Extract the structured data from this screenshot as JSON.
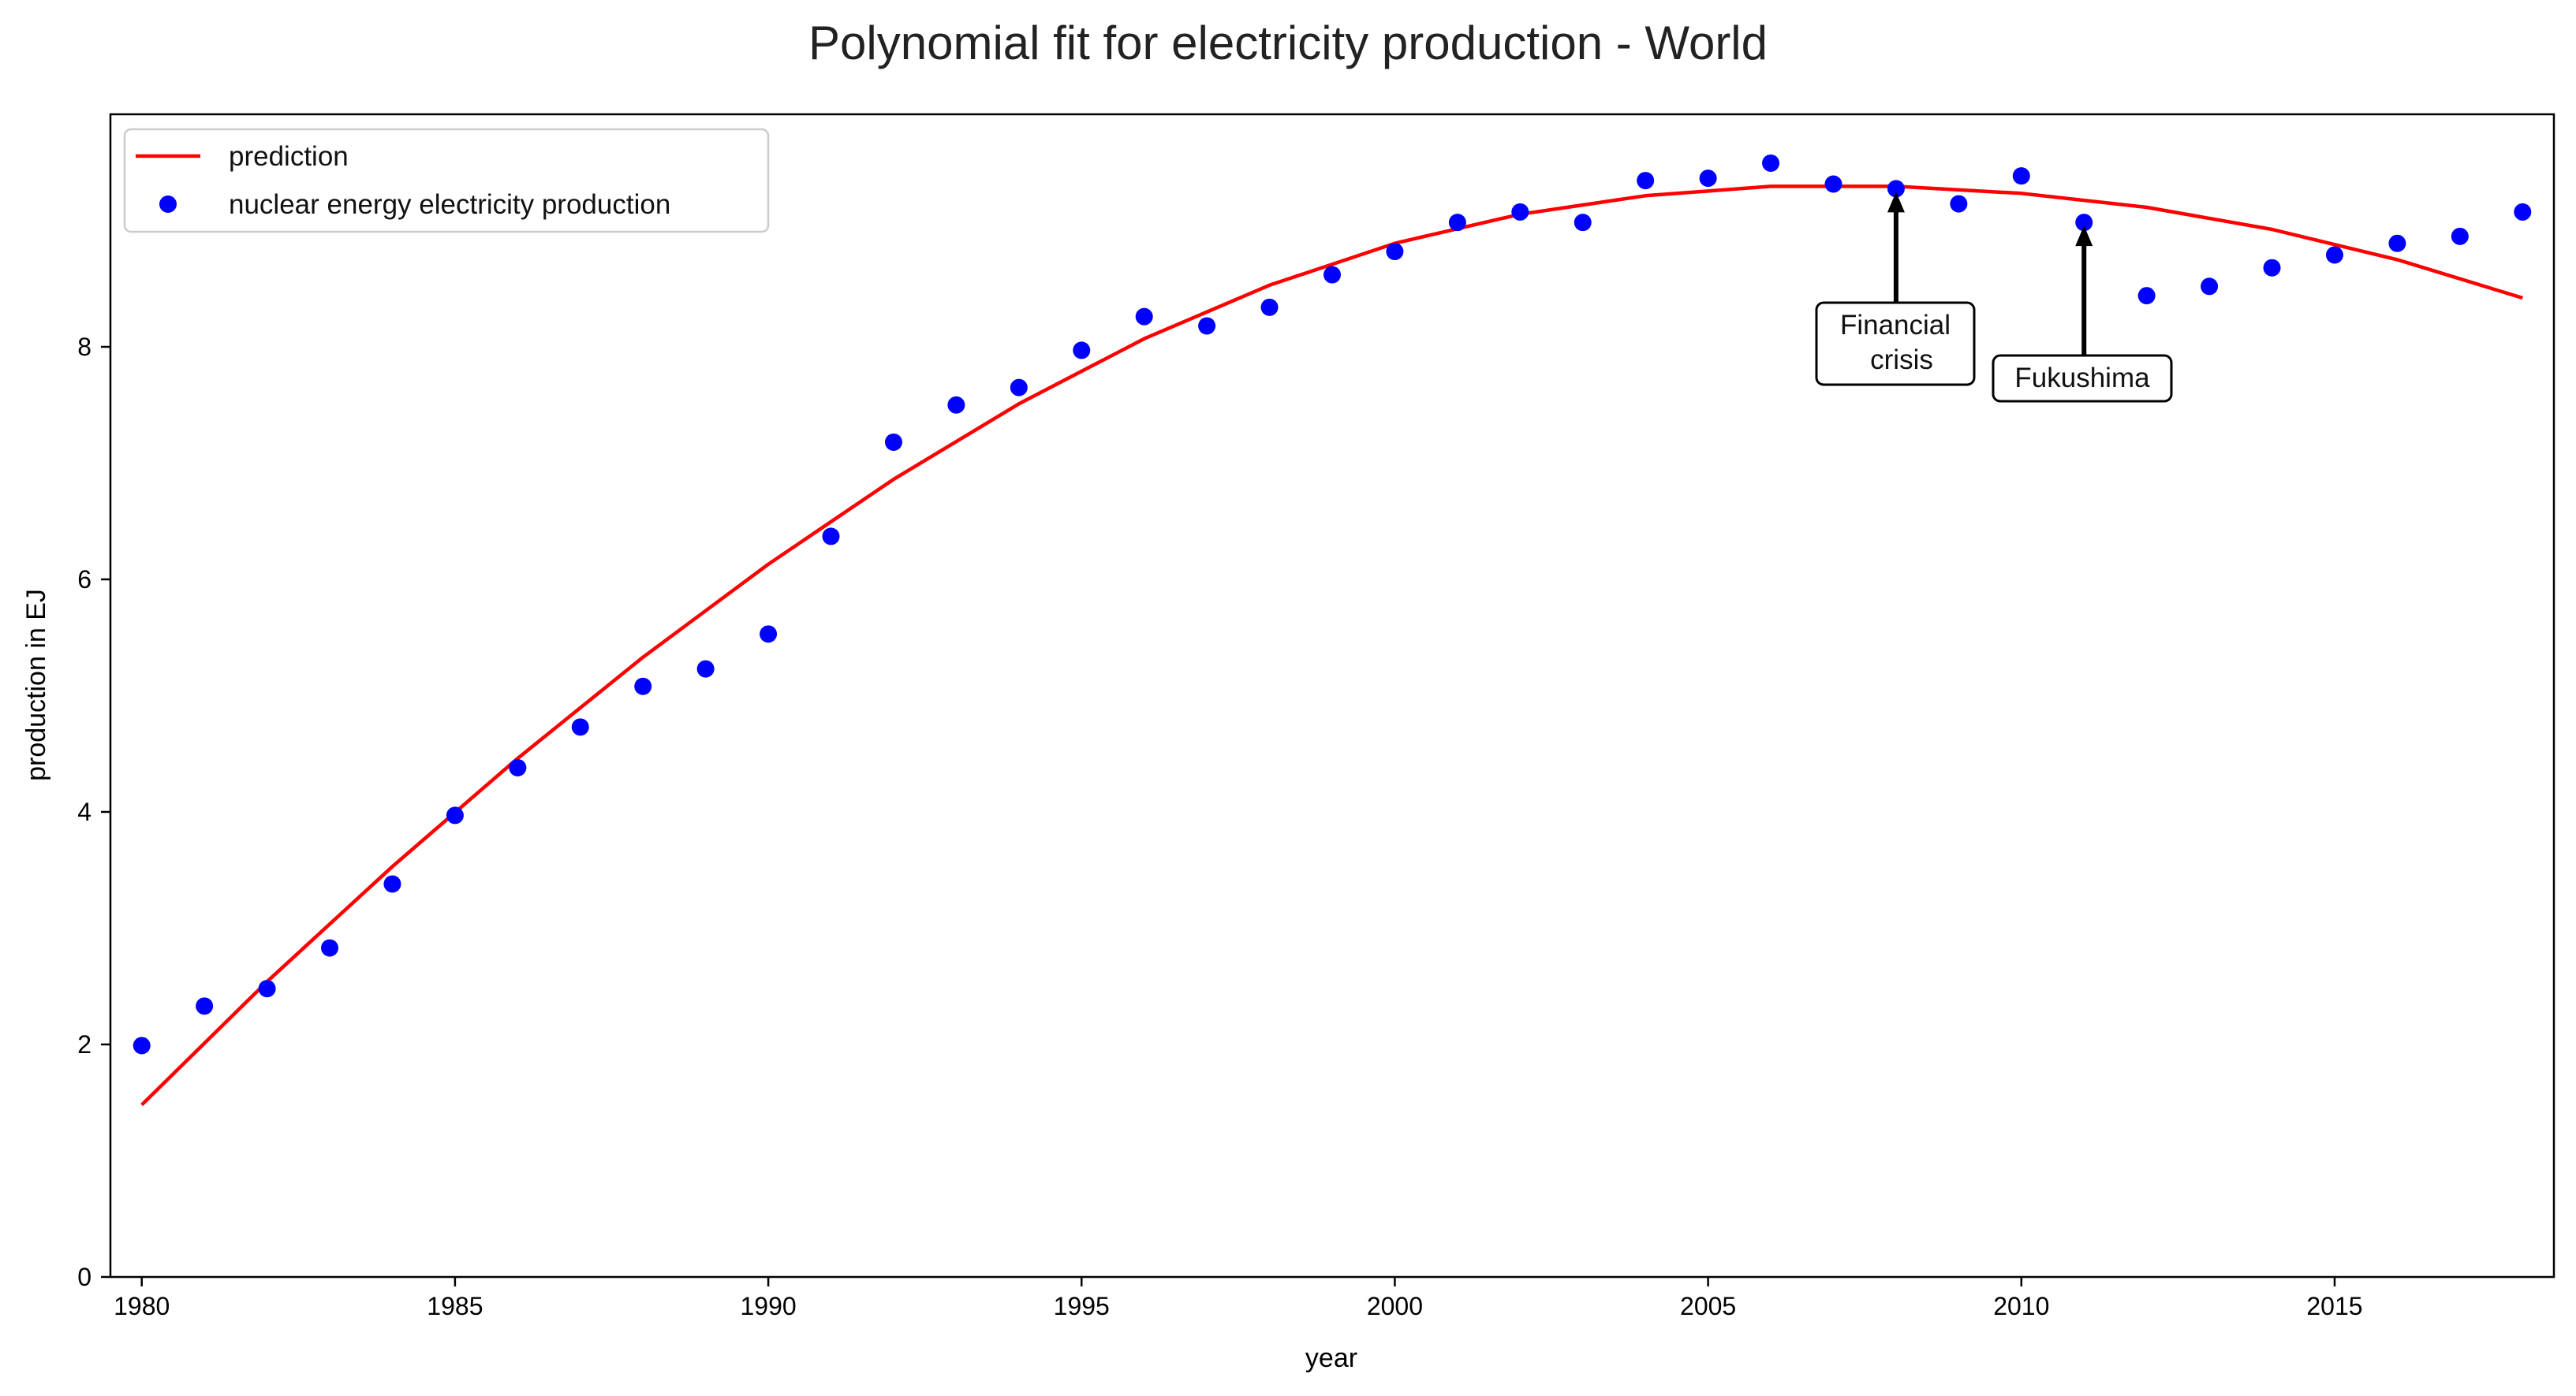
{
  "chart_data": {
    "type": "scatter",
    "title": "Polynomial fit for electricity production - World",
    "xlabel": "year",
    "ylabel": "production in EJ",
    "xlim": [
      1979.5,
      2018.5
    ],
    "ylim": [
      0,
      10
    ],
    "xticks": [
      1980,
      1985,
      1990,
      1995,
      2000,
      2005,
      2010,
      2015
    ],
    "yticks": [
      0,
      2,
      4,
      6,
      8
    ],
    "grid": false,
    "legend_position": "top-left",
    "series": [
      {
        "name": "prediction",
        "kind": "line",
        "color": "#ff0000",
        "x": [
          1980,
          1982,
          1984,
          1986,
          1988,
          1990,
          1992,
          1994,
          1996,
          1998,
          2000,
          2002,
          2004,
          2006,
          2008,
          2010,
          2012,
          2014,
          2016,
          2018
        ],
        "y": [
          1.48,
          2.54,
          3.53,
          4.46,
          5.33,
          6.13,
          6.86,
          7.51,
          8.07,
          8.53,
          8.89,
          9.14,
          9.3,
          9.38,
          9.38,
          9.32,
          9.2,
          9.01,
          8.75,
          8.42
        ]
      },
      {
        "name": "nuclear energy electricity production",
        "kind": "scatter",
        "color": "#0000ff",
        "x": [
          1980,
          1981,
          1982,
          1983,
          1984,
          1985,
          1986,
          1987,
          1988,
          1989,
          1990,
          1991,
          1992,
          1993,
          1994,
          1995,
          1996,
          1997,
          1998,
          1999,
          2000,
          2001,
          2002,
          2003,
          2004,
          2005,
          2006,
          2007,
          2008,
          2009,
          2010,
          2011,
          2012,
          2013,
          2014,
          2015,
          2016,
          2017,
          2018
        ],
        "y": [
          1.99,
          2.33,
          2.48,
          2.83,
          3.38,
          3.97,
          4.38,
          4.73,
          5.08,
          5.23,
          5.53,
          6.37,
          7.18,
          7.5,
          7.65,
          7.97,
          8.26,
          8.18,
          8.34,
          8.62,
          8.82,
          9.07,
          9.16,
          9.07,
          9.43,
          9.45,
          9.58,
          9.4,
          9.36,
          9.23,
          9.47,
          9.07,
          8.44,
          8.52,
          8.68,
          8.79,
          8.89,
          8.95,
          9.16
        ]
      }
    ],
    "annotations": [
      {
        "text_lines": [
          "Financial",
          "crisis"
        ],
        "x": 2008,
        "y": 9.36
      },
      {
        "text_lines": [
          "Fukushima"
        ],
        "x": 2011,
        "y": 9.07
      }
    ]
  }
}
